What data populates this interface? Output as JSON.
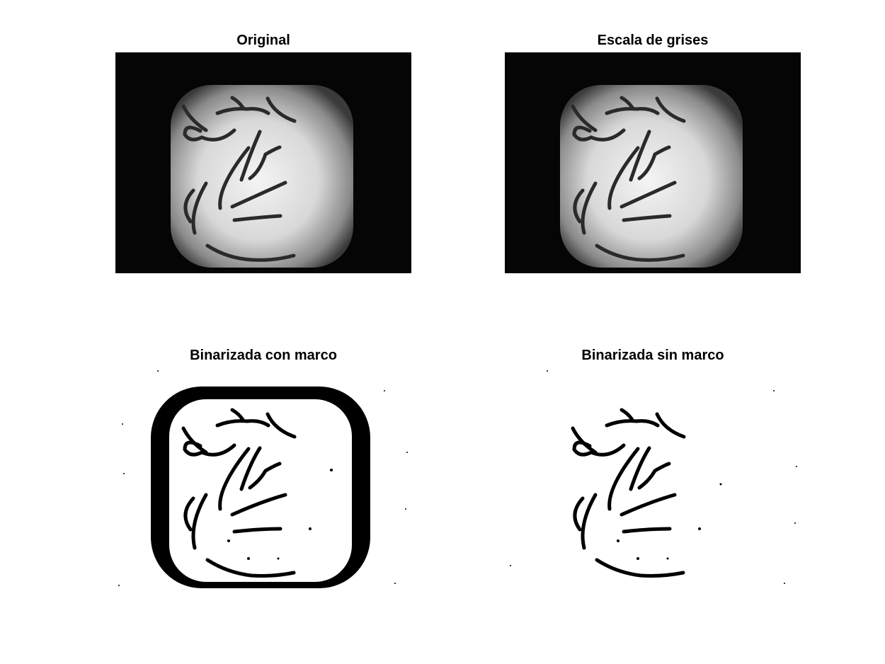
{
  "figure": {
    "panels": [
      {
        "title": "Original",
        "image": "grayscale micrograph of worms on a bright rounded-square field with black surround"
      },
      {
        "title": "Escala de grises",
        "image": "grayscale conversion of the same micrograph"
      },
      {
        "title": "Binarizada con marco",
        "image": "binary image of worms with thick black border frame"
      },
      {
        "title": "Binarizada sin marco",
        "image": "binary image of worms with frame removed"
      }
    ]
  }
}
